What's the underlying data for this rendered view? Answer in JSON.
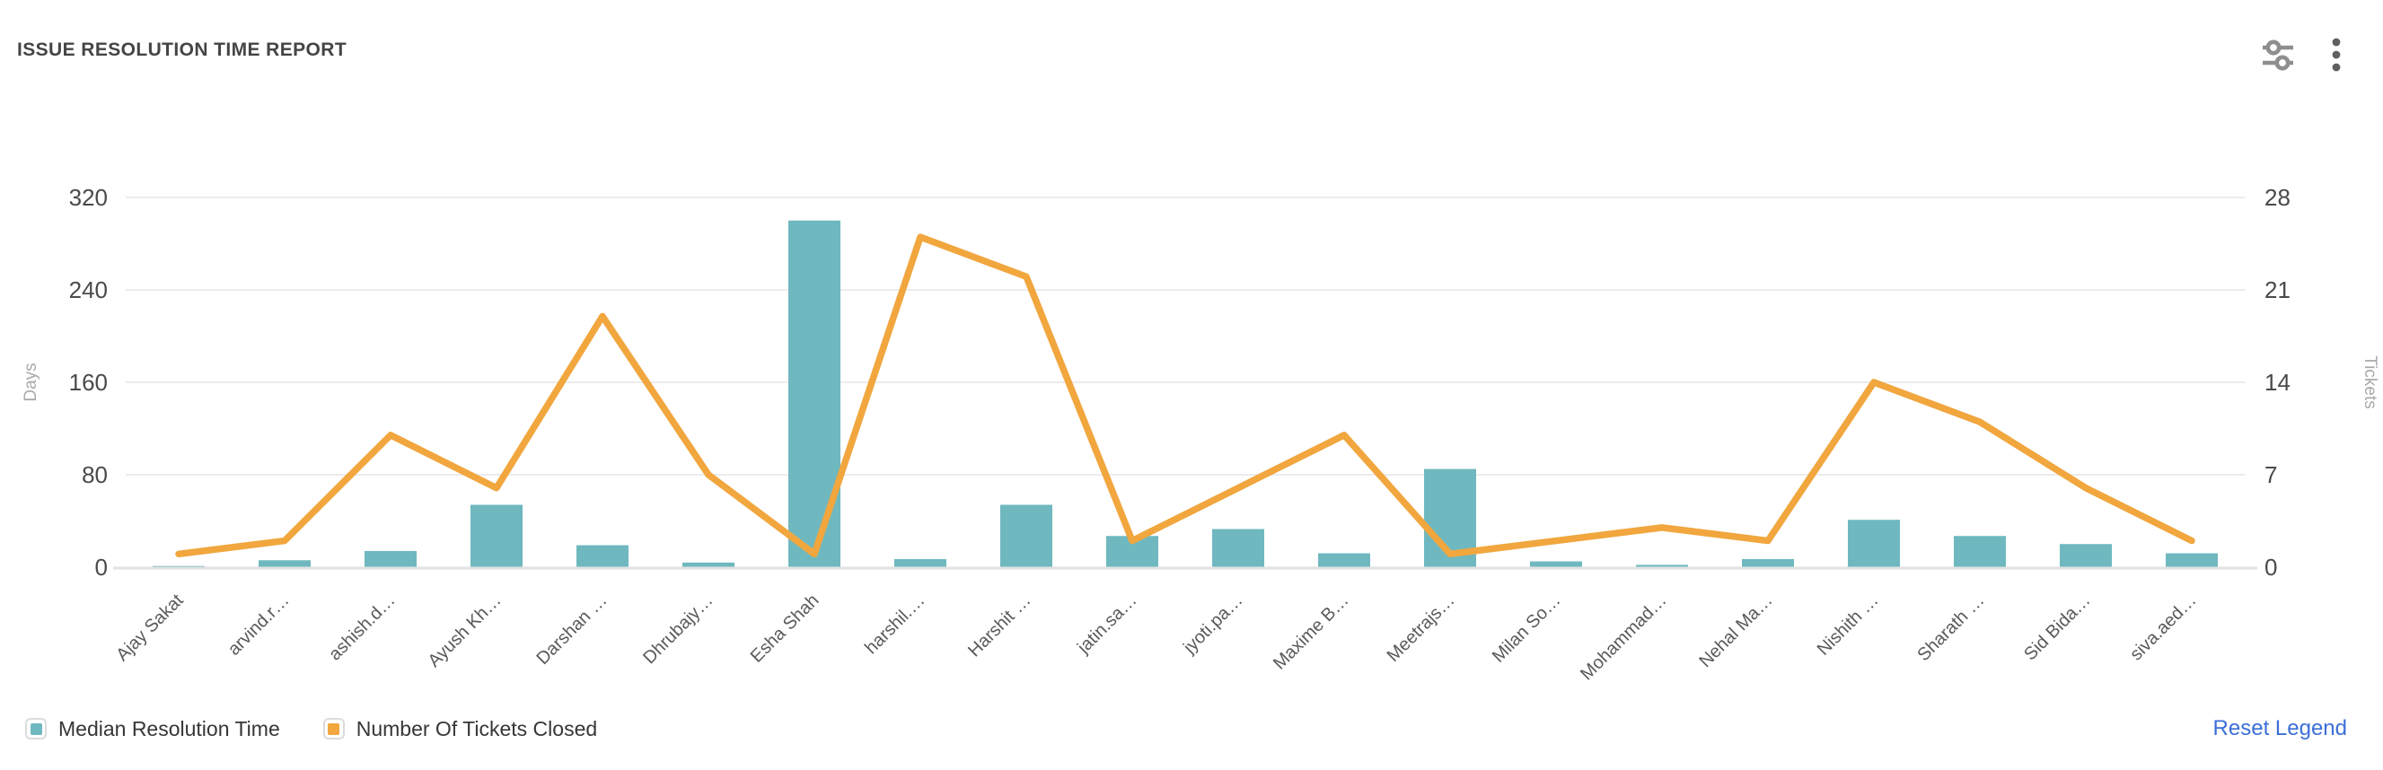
{
  "header": {
    "title": "ISSUE RESOLUTION TIME REPORT"
  },
  "toolbar": {
    "icons": [
      "sliders-filter-icon",
      "kebab-menu-icon"
    ],
    "icon_color": "#8e8e8e"
  },
  "chart_data": {
    "type": "combo",
    "title": "ISSUE RESOLUTION TIME REPORT",
    "categories": [
      "Ajay Sakat",
      "arvind.r…",
      "ashish.d…",
      "Ayush Kh…",
      "Darshan …",
      "Dhrubajy…",
      "Esha Shah",
      "harshil.…",
      "Harshit …",
      "jatin.sa…",
      "jyoti.pa…",
      "Maxime B…",
      "Meetrajs…",
      "Milan So…",
      "Mohammad…",
      "Nehal Ma…",
      "Nishith …",
      "Sharath …",
      "Sid Bida…",
      "siva.aed…"
    ],
    "series": [
      {
        "name": "Median Resolution Time",
        "type": "bar",
        "yaxis": "left",
        "color": "#6fb8bf",
        "values": [
          1,
          6,
          14,
          54,
          19,
          4,
          300,
          7,
          54,
          27,
          33,
          12,
          85,
          5,
          2,
          7,
          41,
          27,
          20,
          12
        ]
      },
      {
        "name": "Number Of Tickets Closed",
        "type": "line",
        "yaxis": "right",
        "color": "#f1a63e",
        "values": [
          1,
          2,
          10,
          6,
          19,
          7,
          1,
          25,
          22,
          2,
          6,
          10,
          1,
          2,
          3,
          2,
          14,
          11,
          6,
          2
        ]
      }
    ],
    "left_axis": {
      "label": "Days",
      "ticks": [
        0,
        80,
        160,
        240,
        320
      ],
      "max": 320
    },
    "right_axis": {
      "label": "Tickets",
      "ticks": [
        0,
        7,
        14,
        21,
        28
      ],
      "max": 28
    },
    "grid": true,
    "legend_position": "bottom-left",
    "colors": {
      "gridline": "#ececec",
      "axis_line": "#e2e2e2",
      "tick_label": "#4a4a4a",
      "axis_name": "#a9a9a9",
      "category_label": "#5a5a5a"
    }
  },
  "legend": {
    "items": [
      {
        "label": "Median Resolution Time",
        "color": "#6fb8bf"
      },
      {
        "label": "Number Of Tickets Closed",
        "color": "#f1a63e"
      }
    ],
    "reset_label": "Reset Legend",
    "reset_color": "#3b6fd8"
  }
}
